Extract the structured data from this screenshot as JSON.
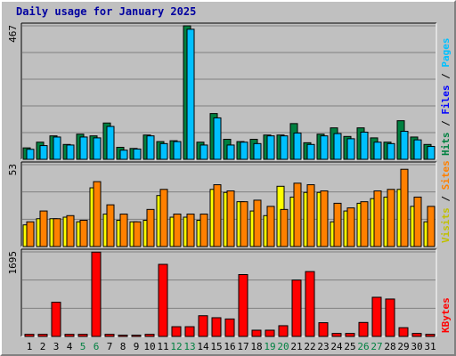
{
  "title": "Daily usage for January 2025",
  "colors": {
    "background": "#c0c0c0",
    "title": "#0000a0",
    "hits": "#008040",
    "files": "#00c0ff",
    "visits": "#ffff00",
    "sites": "#ff8000",
    "kbytes": "#ff0000",
    "weekend_label": "#008040",
    "weekday_label": "#000000",
    "grid": "#808080"
  },
  "chart_data": [
    {
      "type": "bar",
      "panel": "top",
      "ymax_label": "467",
      "ylim": [
        0,
        467
      ],
      "side_labels": [
        {
          "text": "Hits",
          "color": "#008040"
        },
        {
          "text": "Files",
          "color": "#0000ff"
        },
        {
          "text": "Pages",
          "color": "#00c0ff"
        }
      ],
      "series": [
        {
          "name": "Hits",
          "color": "#008040",
          "values": [
            40,
            60,
            82,
            52,
            88,
            82,
            127,
            42,
            38,
            85,
            62,
            65,
            467,
            60,
            160,
            70,
            62,
            70,
            85,
            85,
            125,
            58,
            88,
            110,
            80,
            110,
            75,
            60,
            135,
            78,
            52
          ]
        },
        {
          "name": "Files",
          "color": "#00c0ff",
          "values": [
            35,
            48,
            78,
            50,
            78,
            75,
            115,
            32,
            36,
            82,
            55,
            62,
            455,
            50,
            145,
            50,
            60,
            55,
            82,
            82,
            92,
            52,
            82,
            90,
            72,
            95,
            60,
            55,
            98,
            68,
            45
          ]
        }
      ]
    },
    {
      "type": "bar",
      "panel": "middle",
      "ymax_label": "53",
      "ylim": [
        0,
        53
      ],
      "side_labels": [
        {
          "text": "Visits",
          "color": "#c0c000"
        },
        {
          "text": "Sites",
          "color": "#ff8000"
        }
      ],
      "series": [
        {
          "name": "Visits",
          "color": "#ffff00",
          "values": [
            14,
            18,
            18,
            19,
            16,
            38,
            21,
            17,
            16,
            17,
            33,
            19,
            19,
            17,
            37,
            35,
            29,
            23,
            20,
            39,
            32,
            35,
            35,
            16,
            23,
            28,
            31,
            32,
            37,
            26,
            16
          ]
        },
        {
          "name": "Sites",
          "color": "#ff8000",
          "values": [
            16,
            23,
            18,
            20,
            17,
            42,
            27,
            21,
            16,
            24,
            37,
            21,
            21,
            21,
            40,
            36,
            29,
            30,
            26,
            24,
            41,
            40,
            36,
            28,
            25,
            29,
            36,
            37,
            50,
            32,
            26
          ]
        }
      ]
    },
    {
      "type": "bar",
      "panel": "bottom",
      "ymax_label": "1695",
      "ylim": [
        0,
        1695
      ],
      "side_labels": [
        {
          "text": "KBytes",
          "color": "#ff0000"
        }
      ],
      "series": [
        {
          "name": "KBytes",
          "color": "#ff0000",
          "values": [
            42,
            42,
            685,
            42,
            42,
            1690,
            42,
            25,
            25,
            42,
            1445,
            195,
            195,
            415,
            375,
            350,
            1240,
            125,
            125,
            215,
            1130,
            1300,
            275,
            60,
            60,
            280,
            785,
            750,
            175,
            60,
            42
          ]
        }
      ]
    }
  ],
  "x_labels": [
    "1",
    "2",
    "3",
    "4",
    "5",
    "6",
    "7",
    "8",
    "9",
    "10",
    "11",
    "12",
    "13",
    "14",
    "15",
    "16",
    "17",
    "18",
    "19",
    "20",
    "21",
    "22",
    "23",
    "24",
    "25",
    "26",
    "27",
    "28",
    "29",
    "30",
    "31"
  ],
  "weekend_days": [
    4,
    5,
    11,
    12,
    18,
    19,
    25,
    26
  ]
}
